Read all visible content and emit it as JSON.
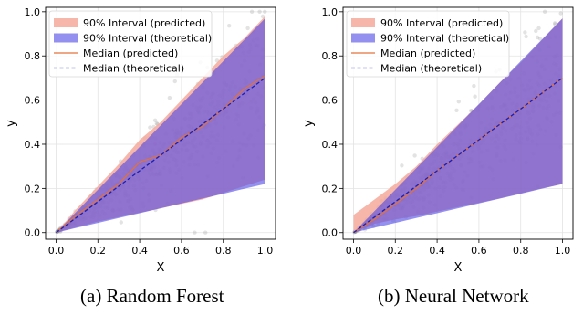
{
  "captions": [
    "(a) Random Forest",
    "(b) Neural Network"
  ],
  "colors": {
    "interval_predicted": "#f4a99b",
    "interval_theoretical": "#4b46e6",
    "median_predicted": "#e4703a",
    "median_theoretical": "#1b1fb3",
    "scatter": "#808080"
  },
  "chart_data": [
    {
      "type": "area",
      "xlabel": "X",
      "ylabel": "y",
      "xlim": [
        -0.05,
        1.05
      ],
      "ylim": [
        -0.03,
        1.02
      ],
      "xticks": [
        "0.0",
        "0.2",
        "0.4",
        "0.6",
        "0.8",
        "1.0"
      ],
      "yticks": [
        "0.0",
        "0.2",
        "0.4",
        "0.6",
        "0.8",
        "1.0"
      ],
      "grid": true,
      "legend_position": "top-left",
      "legend": [
        "90% Interval (predicted)",
        "90% Interval (theoretical)",
        "Median (predicted)",
        "Median (theoretical)"
      ],
      "x": [
        0.0,
        0.1,
        0.2,
        0.3,
        0.4,
        0.5,
        0.6,
        0.7,
        0.8,
        0.9,
        1.0
      ],
      "series": [
        {
          "name": "90% Interval (predicted)",
          "lower": [
            0.0,
            0.025,
            0.05,
            0.07,
            0.09,
            0.11,
            0.13,
            0.15,
            0.18,
            0.21,
            0.24
          ],
          "upper": [
            0.0,
            0.11,
            0.21,
            0.31,
            0.42,
            0.5,
            0.6,
            0.7,
            0.8,
            0.88,
            0.98
          ]
        },
        {
          "name": "90% Interval (theoretical)",
          "lower": [
            0.0,
            0.022,
            0.044,
            0.066,
            0.088,
            0.11,
            0.132,
            0.154,
            0.176,
            0.198,
            0.22
          ],
          "upper": [
            0.0,
            0.097,
            0.194,
            0.291,
            0.388,
            0.485,
            0.582,
            0.679,
            0.776,
            0.873,
            0.97
          ]
        },
        {
          "name": "Median (predicted)",
          "values": [
            0.0,
            0.08,
            0.15,
            0.22,
            0.32,
            0.35,
            0.43,
            0.48,
            0.56,
            0.65,
            0.71
          ]
        },
        {
          "name": "Median (theoretical)",
          "values": [
            0.0,
            0.07,
            0.14,
            0.21,
            0.28,
            0.35,
            0.42,
            0.49,
            0.56,
            0.63,
            0.7
          ]
        }
      ]
    },
    {
      "type": "area",
      "xlabel": "X",
      "ylabel": "y",
      "xlim": [
        -0.05,
        1.05
      ],
      "ylim": [
        -0.03,
        1.02
      ],
      "xticks": [
        "0.0",
        "0.2",
        "0.4",
        "0.6",
        "0.8",
        "1.0"
      ],
      "yticks": [
        "0.0",
        "0.2",
        "0.4",
        "0.6",
        "0.8",
        "1.0"
      ],
      "grid": true,
      "legend_position": "top-left",
      "legend": [
        "90% Interval (predicted)",
        "90% Interval (theoretical)",
        "Median (predicted)",
        "Median (theoretical)"
      ],
      "x": [
        0.0,
        0.1,
        0.2,
        0.3,
        0.4,
        0.5,
        0.6,
        0.7,
        0.8,
        0.9,
        1.0
      ],
      "series": [
        {
          "name": "90% Interval (predicted)",
          "lower": [
            0.0,
            0.04,
            0.06,
            0.075,
            0.095,
            0.115,
            0.135,
            0.155,
            0.178,
            0.2,
            0.22
          ],
          "upper": [
            0.08,
            0.15,
            0.22,
            0.3,
            0.4,
            0.49,
            0.58,
            0.68,
            0.77,
            0.87,
            0.97
          ]
        },
        {
          "name": "90% Interval (theoretical)",
          "lower": [
            0.0,
            0.022,
            0.044,
            0.066,
            0.088,
            0.11,
            0.132,
            0.154,
            0.176,
            0.198,
            0.22
          ],
          "upper": [
            0.0,
            0.097,
            0.194,
            0.291,
            0.388,
            0.485,
            0.582,
            0.679,
            0.776,
            0.873,
            0.97
          ]
        },
        {
          "name": "Median (predicted)",
          "values": [
            0.0,
            0.06,
            0.13,
            0.2,
            0.28,
            0.35,
            0.42,
            0.49,
            0.56,
            0.63,
            0.7
          ]
        },
        {
          "name": "Median (theoretical)",
          "values": [
            0.0,
            0.07,
            0.14,
            0.21,
            0.28,
            0.35,
            0.42,
            0.49,
            0.56,
            0.63,
            0.7
          ]
        }
      ]
    }
  ]
}
